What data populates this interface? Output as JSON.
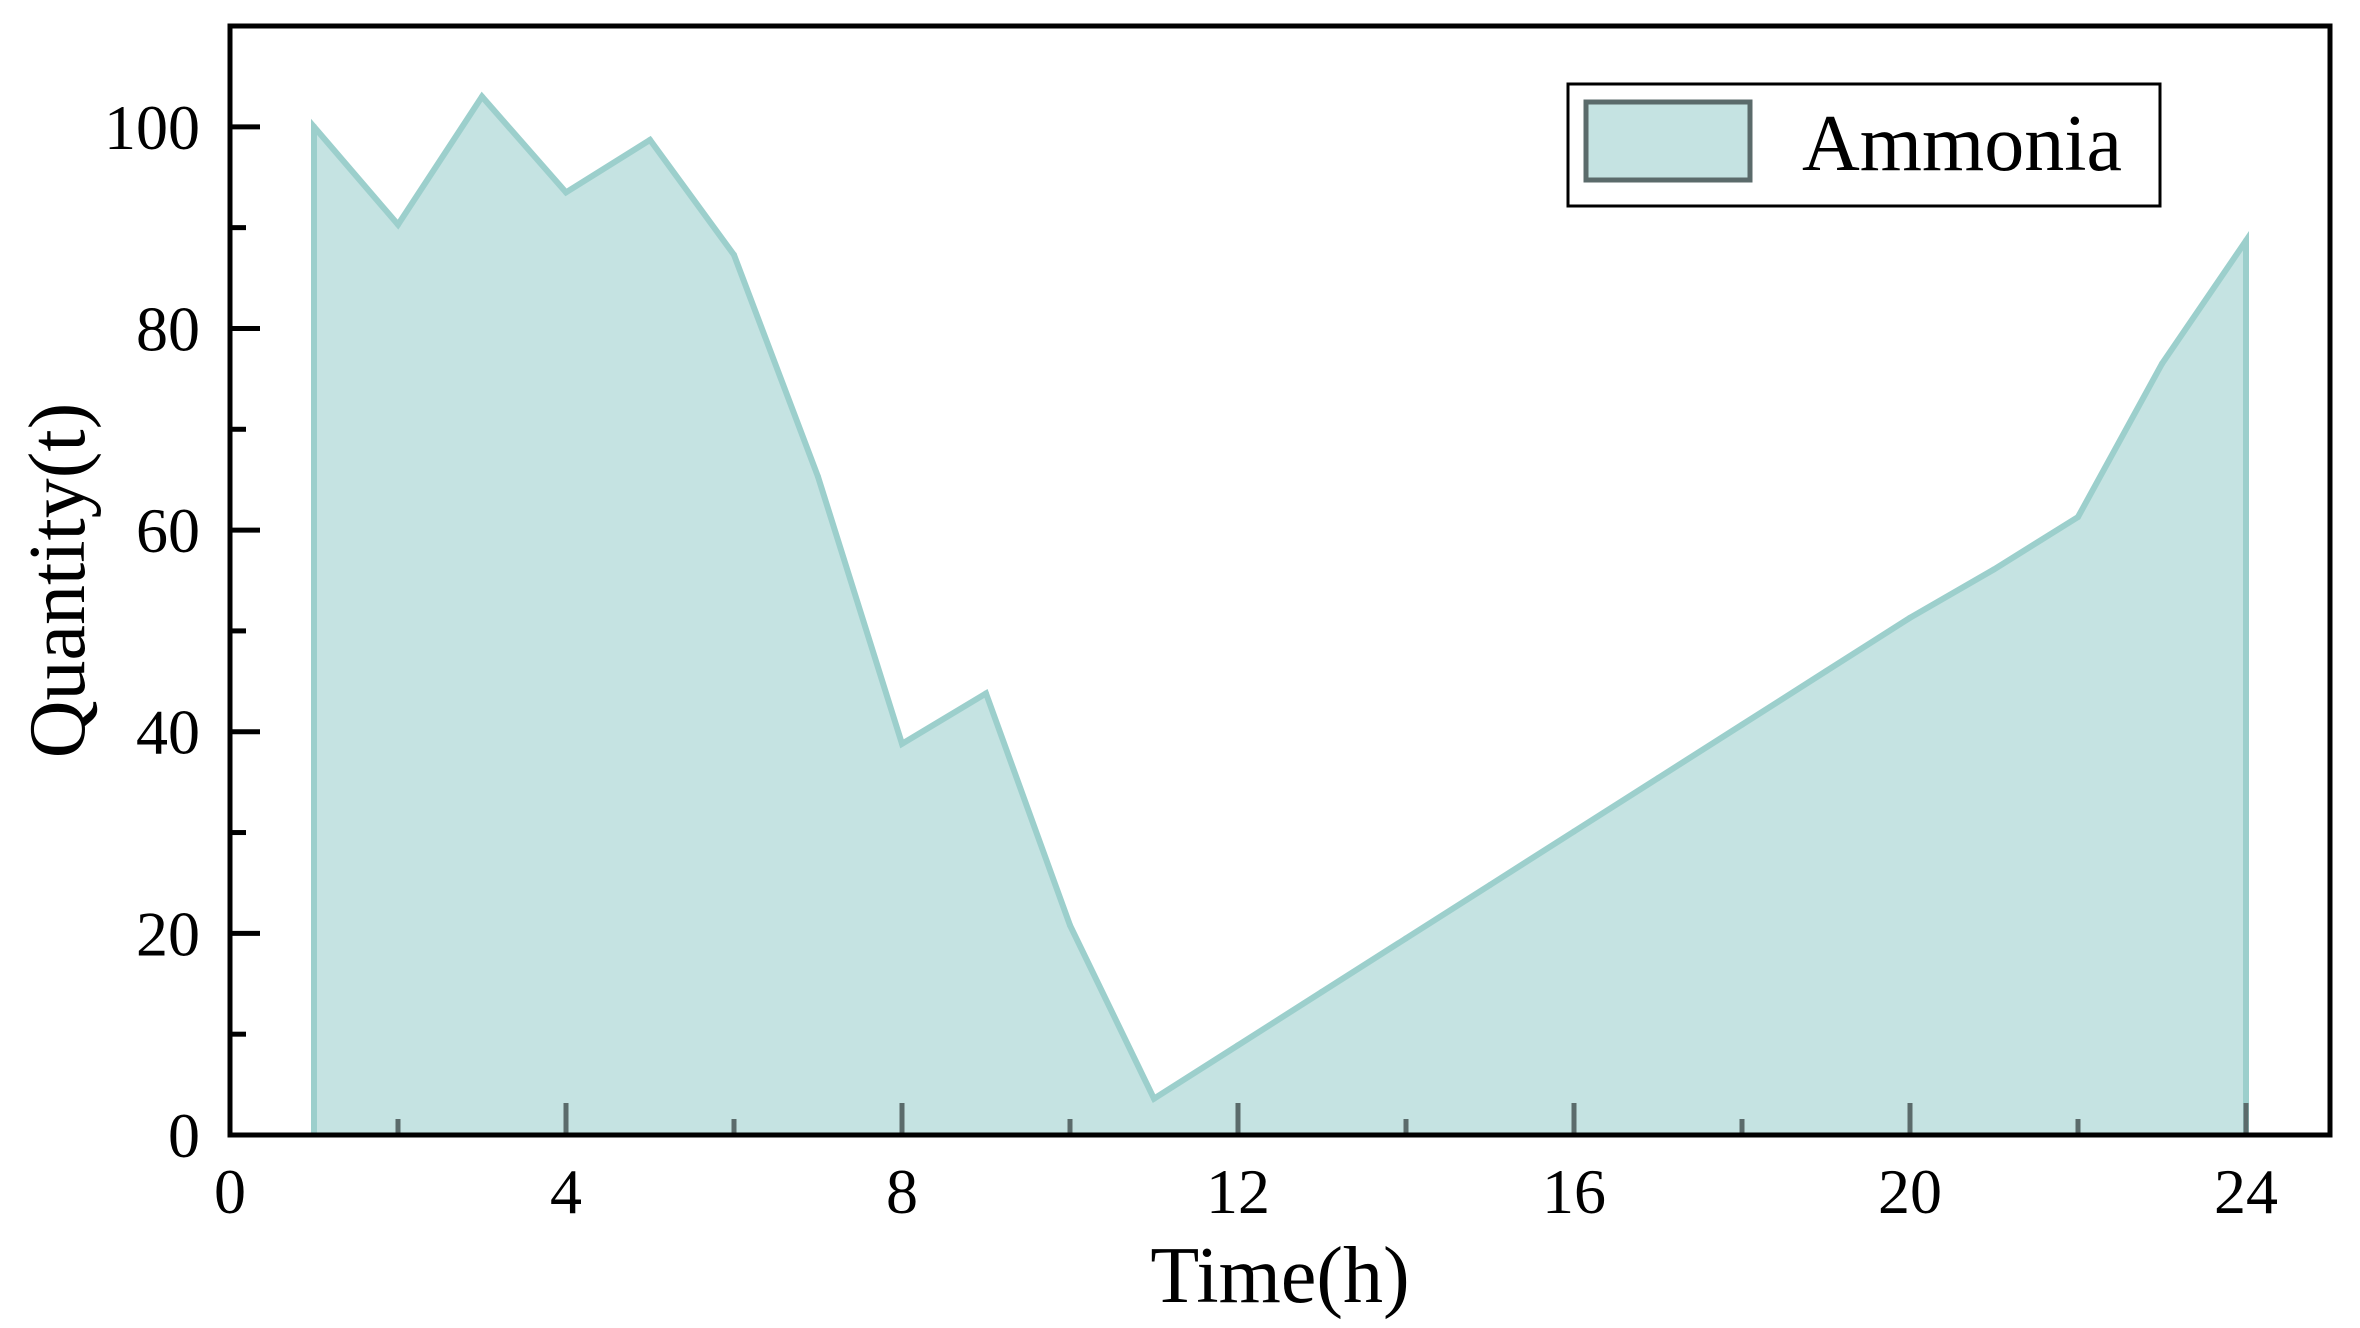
{
  "chart_data": {
    "type": "area",
    "xlabel": "Time(h)",
    "ylabel": "Quantity(t)",
    "xlim": [
      0,
      25
    ],
    "ylim": [
      0,
      110
    ],
    "x_ticks": [
      0,
      4,
      8,
      12,
      16,
      20,
      24
    ],
    "y_ticks": [
      0,
      20,
      40,
      60,
      80,
      100
    ],
    "x_minor_ticks": [
      2,
      6,
      10,
      14,
      18,
      22
    ],
    "y_minor_ticks": [
      10,
      30,
      50,
      70,
      90
    ],
    "grid": false,
    "legend": {
      "position": "top-right",
      "entries": [
        "Ammonia"
      ]
    },
    "series": [
      {
        "name": "Ammonia",
        "fill_color": "#c5e3e2",
        "line_color": "#9ccfcc",
        "x": [
          1,
          2,
          3,
          4,
          5,
          6,
          7,
          8,
          9,
          10,
          11,
          12,
          13,
          14,
          15,
          16,
          17,
          18,
          19,
          20,
          21,
          22,
          23,
          24
        ],
        "y": [
          100,
          90.3,
          103,
          93.5,
          98.7,
          87.3,
          65.3,
          38.8,
          43.8,
          20.8,
          3.6,
          8.9,
          14.2,
          19.5,
          24.8,
          30.1,
          35.4,
          40.7,
          46,
          51.3,
          56.1,
          61.3,
          76.5,
          88.7
        ]
      }
    ]
  }
}
